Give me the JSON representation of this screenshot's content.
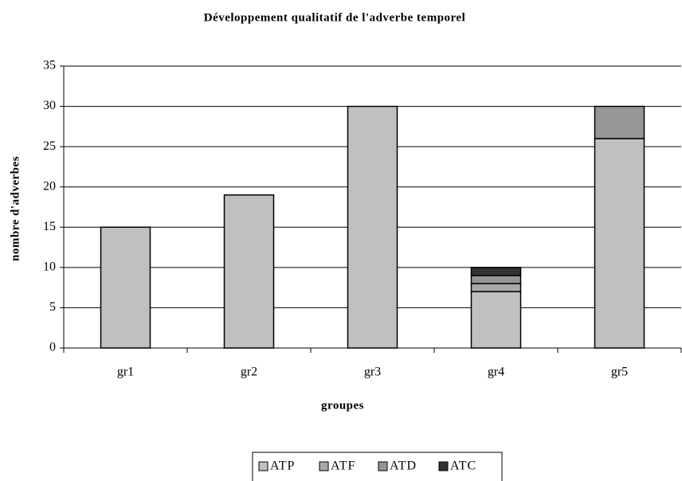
{
  "chart_data": {
    "type": "stacked_bar",
    "title": "Développement qualitatif de l'adverbe temporel",
    "xlabel": "groupes",
    "ylabel": "nombre d'adverbes",
    "categories": [
      "gr1",
      "gr2",
      "gr3",
      "gr4",
      "gr5"
    ],
    "series": [
      {
        "name": "ATP",
        "color": "#c0c0c0",
        "values": [
          15,
          19,
          30,
          7,
          26
        ]
      },
      {
        "name": "ATF",
        "color": "#a8a8a8",
        "values": [
          0,
          0,
          0,
          1,
          0
        ]
      },
      {
        "name": "ATD",
        "color": "#969696",
        "values": [
          0,
          0,
          0,
          1,
          4
        ]
      },
      {
        "name": "ATC",
        "color": "#333333",
        "values": [
          0,
          0,
          0,
          1,
          0
        ]
      }
    ],
    "ylim": [
      0,
      35
    ],
    "yticks": [
      0,
      5,
      10,
      15,
      20,
      25,
      30,
      35
    ],
    "grid": true,
    "legend": "bottom"
  }
}
